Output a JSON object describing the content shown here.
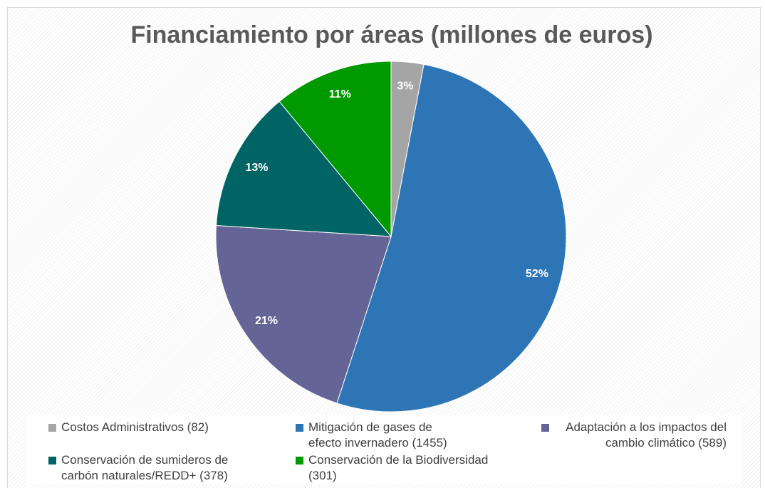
{
  "chart_data": {
    "type": "pie",
    "title": "Financiamiento por áreas (millones de euros)",
    "categories": [
      "Costos Administrativos (82)",
      "Mitigación de gases de efecto invernadero (1455)",
      "Adaptación a los impactos del cambio climático (589)",
      "Conservación de sumideros de carbón naturales/REDD+ (378)",
      "Conservación de la Biodiversidad (301)"
    ],
    "values": [
      3,
      52,
      21,
      13,
      11
    ],
    "value_labels": [
      "3%",
      "52%",
      "21%",
      "13%",
      "11%"
    ],
    "colors": [
      "#a5a5a5",
      "#2e75b6",
      "#646496",
      "#006464",
      "#009900"
    ],
    "legend": "bottom"
  }
}
